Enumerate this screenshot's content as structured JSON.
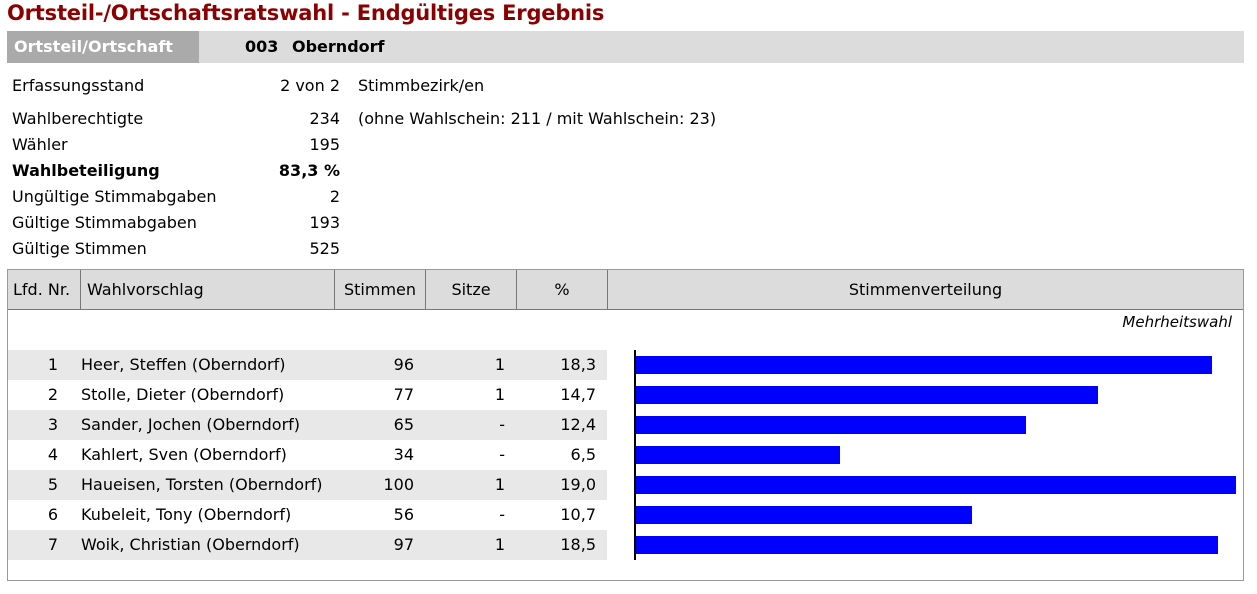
{
  "title": "Ortsteil-/Ortschaftsratswahl - Endgültiges Ergebnis",
  "district": {
    "label": "Ortsteil/Ortschaft",
    "code": "003",
    "name": "Oberndorf"
  },
  "stats": {
    "erfassung": {
      "label": "Erfassungsstand",
      "value": "2 von 2",
      "extra": "Stimmbezirk/en"
    },
    "wahlberechtigte": {
      "label": "Wahlberechtigte",
      "value": "234",
      "extra": "(ohne Wahlschein: 211 / mit Wahlschein: 23)"
    },
    "waehler": {
      "label": "Wähler",
      "value": "195"
    },
    "beteiligung": {
      "label": "Wahlbeteiligung",
      "value": "83,3 %"
    },
    "ungueltig": {
      "label": "Ungültige Stimmabgaben",
      "value": "2"
    },
    "gueltig_abgaben": {
      "label": "Gültige Stimmabgaben",
      "value": "193"
    },
    "gueltig_stimmen": {
      "label": "Gültige Stimmen",
      "value": "525"
    }
  },
  "table": {
    "headers": {
      "nr": "Lfd. Nr.",
      "name": "Wahlvorschlag",
      "votes": "Stimmen",
      "seats": "Sitze",
      "pct": "%",
      "distribution": "Stimmenverteilung"
    },
    "method": "Mehrheitswahl",
    "rows": [
      {
        "nr": "1",
        "name": "Heer, Steffen (Oberndorf)",
        "votes": "96",
        "seats": "1",
        "pct": "18,3"
      },
      {
        "nr": "2",
        "name": "Stolle, Dieter (Oberndorf)",
        "votes": "77",
        "seats": "1",
        "pct": "14,7"
      },
      {
        "nr": "3",
        "name": "Sander, Jochen (Oberndorf)",
        "votes": "65",
        "seats": "-",
        "pct": "12,4"
      },
      {
        "nr": "4",
        "name": "Kahlert, Sven (Oberndorf)",
        "votes": "34",
        "seats": "-",
        "pct": "6,5"
      },
      {
        "nr": "5",
        "name": "Haueisen, Torsten (Oberndorf)",
        "votes": "100",
        "seats": "1",
        "pct": "19,0"
      },
      {
        "nr": "6",
        "name": "Kubeleit, Tony (Oberndorf)",
        "votes": "56",
        "seats": "-",
        "pct": "10,7"
      },
      {
        "nr": "7",
        "name": "Woik, Christian (Oberndorf)",
        "votes": "97",
        "seats": "1",
        "pct": "18,5"
      }
    ]
  },
  "colors": {
    "title": "#8b0000",
    "bar": "#0000ff",
    "header_bg": "#dcdcdc",
    "label_bg": "#aaaaaa"
  }
}
